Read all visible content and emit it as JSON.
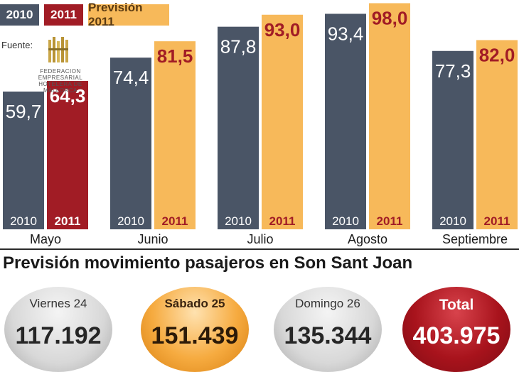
{
  "legend": {
    "y2010": "2010",
    "y2011": "2011",
    "forecast": "Previsión 2011"
  },
  "source": {
    "label": "Fuente:",
    "org_name": "FEDERACION EMPRESARIAL HOTELERA DE MALLORCA"
  },
  "chart_data": {
    "type": "bar",
    "categories": [
      "Mayo",
      "Junio",
      "Julio",
      "Agosto",
      "Septiembre"
    ],
    "series": [
      {
        "name": "2010",
        "values": [
          59.7,
          74.4,
          87.8,
          93.4,
          77.3
        ],
        "labels": [
          "59,7",
          "74,4",
          "87,8",
          "93,4",
          "77,3"
        ]
      },
      {
        "name": "2011",
        "values": [
          64.3,
          81.5,
          93.0,
          98.0,
          82.0
        ],
        "labels": [
          "64,3",
          "81,5",
          "93,0",
          "98,0",
          "82,0"
        ],
        "kind": [
          "real",
          "forecast",
          "forecast",
          "forecast",
          "forecast"
        ]
      }
    ],
    "bar_bottom_labels": [
      "2010",
      "2011"
    ],
    "ylim": [
      0,
      100
    ],
    "colors": {
      "y2010": "#4a5566",
      "y2011": "#a11c25",
      "forecast": "#f7b95a",
      "value_2010": "#ffffff",
      "value_2011_dark": "#ffffff",
      "value_2011_light": "#a11c25",
      "bottom_2011": "#a11c25"
    }
  },
  "passengers": {
    "title": "Previsión movimiento pasajeros en Son Sant Joan",
    "days": [
      {
        "label": "Viernes 24",
        "value": "117.192"
      },
      {
        "label": "Sábado 25",
        "value": "151.439"
      },
      {
        "label": "Domingo 26",
        "value": "135.344"
      },
      {
        "label": "Total",
        "value": "403.975"
      }
    ]
  }
}
